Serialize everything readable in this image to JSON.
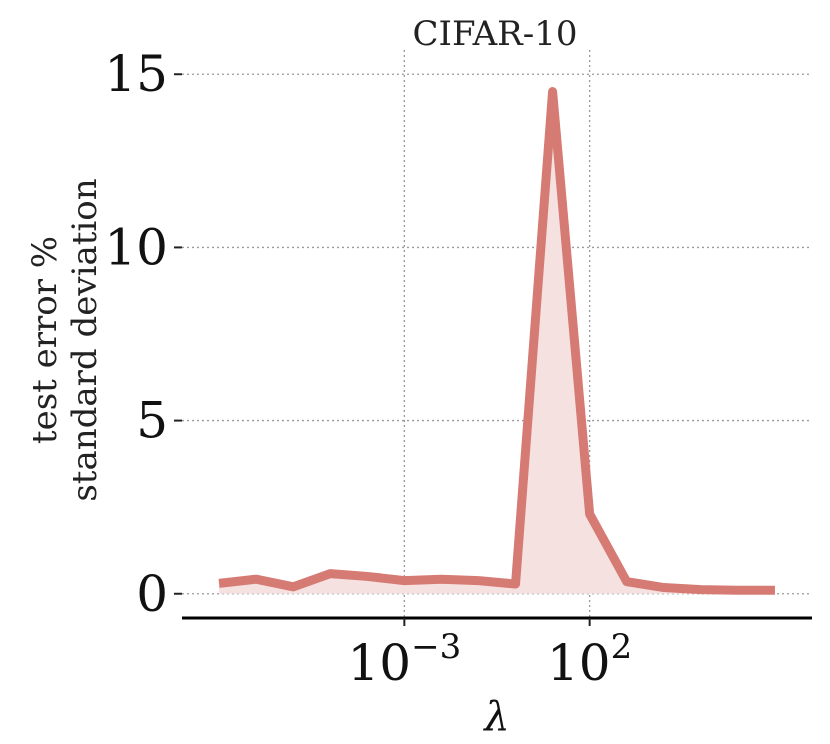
{
  "chart_data": {
    "type": "line",
    "title": "CIFAR-10",
    "xlabel": "λ",
    "ylabel_lines": [
      "test error %",
      "standard deviation"
    ],
    "x_scale": "log",
    "x_ticks": [
      {
        "base": "10",
        "exp": "−3",
        "value": 0.001
      },
      {
        "base": "10",
        "exp": "2",
        "value": 100
      }
    ],
    "y_ticks": [
      {
        "label": "0",
        "value": 0
      },
      {
        "label": "5",
        "value": 5
      },
      {
        "label": "10",
        "value": 10
      },
      {
        "label": "15",
        "value": 15
      }
    ],
    "xlim": [
      1e-09,
      100000000.0
    ],
    "ylim": [
      -0.7,
      15.7
    ],
    "grid": true,
    "series_color": "#d67a74",
    "fill_color": "#f5e1df",
    "series": [
      {
        "x": [
          1e-08,
          1e-07,
          1e-06,
          1e-05,
          0.0001,
          0.001,
          0.01,
          0.1,
          1.0,
          10.0,
          100.0,
          1000.0,
          10000.0,
          100000.0,
          1000000.0,
          10000000.0
        ],
        "values": [
          0.3,
          0.42,
          0.2,
          0.58,
          0.5,
          0.38,
          0.42,
          0.38,
          0.28,
          14.5,
          2.3,
          0.35,
          0.18,
          0.12,
          0.1,
          0.1
        ]
      }
    ],
    "series_x_overrides": {
      "note_indices": []
    }
  }
}
